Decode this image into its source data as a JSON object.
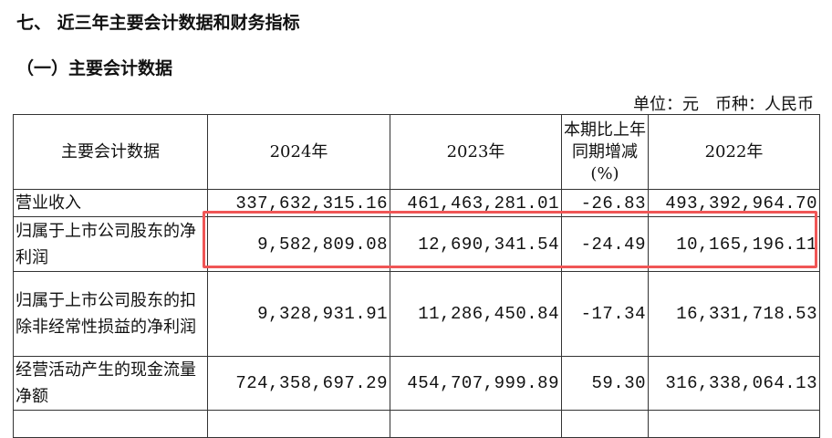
{
  "section_title": "七、 近三年主要会计数据和财务指标",
  "subsection_title": "（一）主要会计数据",
  "unit_line": "单位：元　币种：人民币",
  "table": {
    "headers": [
      "主要会计数据",
      "2024年",
      "2023年",
      "本期比上年同期增减(%)",
      "2022年"
    ],
    "rows": [
      {
        "label": "营业收入",
        "values": [
          "337,632,315.16",
          "461,463,281.01",
          "-26.83",
          "493,392,964.70"
        ]
      },
      {
        "label": "归属于上市公司股东的净利润",
        "values": [
          "9,582,809.08",
          "12,690,341.54",
          "-24.49",
          "10,165,196.11"
        ]
      },
      {
        "label": "归属于上市公司股东的扣除非经常性损益的净利润",
        "values": [
          "9,328,931.91",
          "11,286,450.84",
          "-17.34",
          "16,331,718.53"
        ]
      },
      {
        "label": "经营活动产生的现金流量净额",
        "values": [
          "724,358,697.29",
          "454,707,999.89",
          "59.30",
          "316,338,064.13"
        ]
      }
    ]
  },
  "highlight_color": "#f05656"
}
